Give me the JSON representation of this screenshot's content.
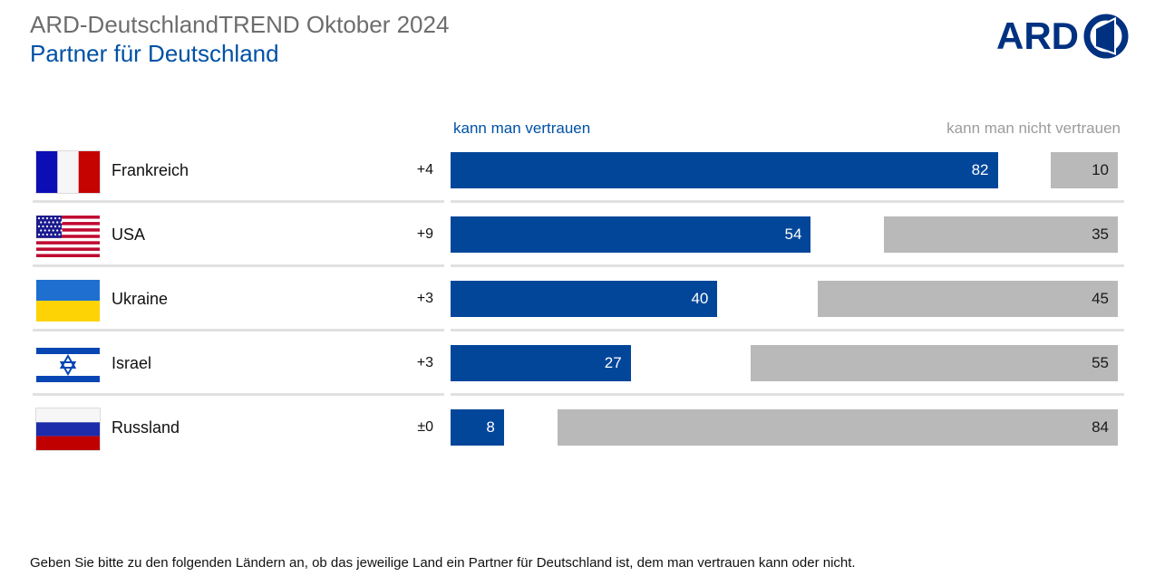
{
  "header": {
    "pretitle": "ARD-DeutschlandTREND Oktober 2024",
    "title": "Partner für Deutschland"
  },
  "logo": {
    "text": "ARD",
    "icon": "ard-one-icon"
  },
  "legend": {
    "left": "kann man vertrauen",
    "right": "kann man nicht vertrauen"
  },
  "footer": {
    "question": "Geben Sie bitte zu den folgenden Ländern an, ob das jeweilige Land ein Partner für Deutschland ist, dem man vertrauen kann oder nicht."
  },
  "colors": {
    "trust_bar": "#02469a",
    "distrust_bar": "#b9b9b9",
    "accent_blue_text": "#0051a5",
    "gray_text": "#9c9c9c",
    "pretitle_gray": "#6d6d6d",
    "logo_navy": "#003181",
    "divider": "#e1e1e1"
  },
  "chart_data": {
    "type": "bar",
    "orientation": "horizontal",
    "title": "Partner für Deutschland",
    "xlim": [
      0,
      100
    ],
    "legend": [
      "kann man vertrauen",
      "kann man nicht vertrauen"
    ],
    "categories": [
      "Frankreich",
      "USA",
      "Ukraine",
      "Israel",
      "Russland"
    ],
    "series": [
      {
        "name": "kann man vertrauen",
        "values": [
          82,
          54,
          40,
          27,
          8
        ],
        "color": "#02469a",
        "anchor": "left"
      },
      {
        "name": "kann man nicht vertrauen",
        "values": [
          10,
          35,
          45,
          55,
          84
        ],
        "color": "#b9b9b9",
        "anchor": "right"
      }
    ],
    "rows": [
      {
        "country": "Frankreich",
        "flag": "france-flag",
        "change": "+4",
        "trust": 82,
        "distrust": 10
      },
      {
        "country": "USA",
        "flag": "usa-flag",
        "change": "+9",
        "trust": 54,
        "distrust": 35
      },
      {
        "country": "Ukraine",
        "flag": "ukraine-flag",
        "change": "+3",
        "trust": 40,
        "distrust": 45
      },
      {
        "country": "Israel",
        "flag": "israel-flag",
        "change": "+3",
        "trust": 27,
        "distrust": 55
      },
      {
        "country": "Russland",
        "flag": "russia-flag",
        "change": "±0",
        "trust": 8,
        "distrust": 84
      }
    ]
  }
}
